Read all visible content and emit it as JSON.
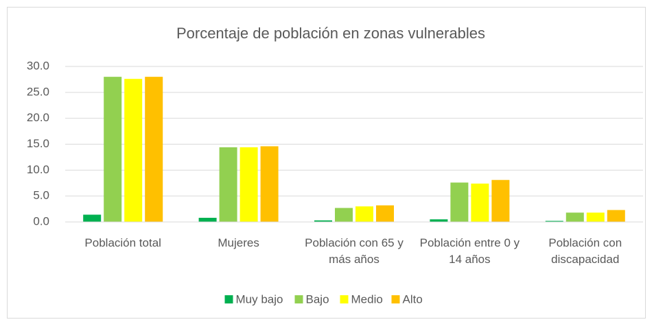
{
  "chart_data": {
    "type": "bar",
    "title": "Porcentaje de población en zonas vulnerables",
    "categories": [
      "Población total",
      "Mujeres",
      "Población con 65 y más años",
      "Población entre 0 y 14 años",
      "Población con discapacidad"
    ],
    "series": [
      {
        "name": "Muy bajo",
        "color": "#00b050",
        "values": [
          1.4,
          0.8,
          0.3,
          0.5,
          0.2
        ]
      },
      {
        "name": "Bajo",
        "color": "#92d050",
        "values": [
          28.0,
          14.4,
          2.7,
          7.6,
          1.8
        ]
      },
      {
        "name": "Medio",
        "color": "#ffff00",
        "values": [
          27.6,
          14.4,
          3.0,
          7.4,
          1.8
        ]
      },
      {
        "name": "Alto",
        "color": "#ffc000",
        "values": [
          28.0,
          14.6,
          3.2,
          8.1,
          2.3
        ]
      }
    ],
    "ylim": [
      0,
      30
    ],
    "yticks": [
      {
        "value": 0,
        "label": "0.0"
      },
      {
        "value": 5,
        "label": "5.0"
      },
      {
        "value": 10,
        "label": "10.0"
      },
      {
        "value": 15,
        "label": "15.0"
      },
      {
        "value": 20,
        "label": "20.0"
      },
      {
        "value": 25,
        "label": "25.0"
      },
      {
        "value": 30,
        "label": "30.0"
      }
    ],
    "grid": true,
    "legend": "bottom"
  }
}
